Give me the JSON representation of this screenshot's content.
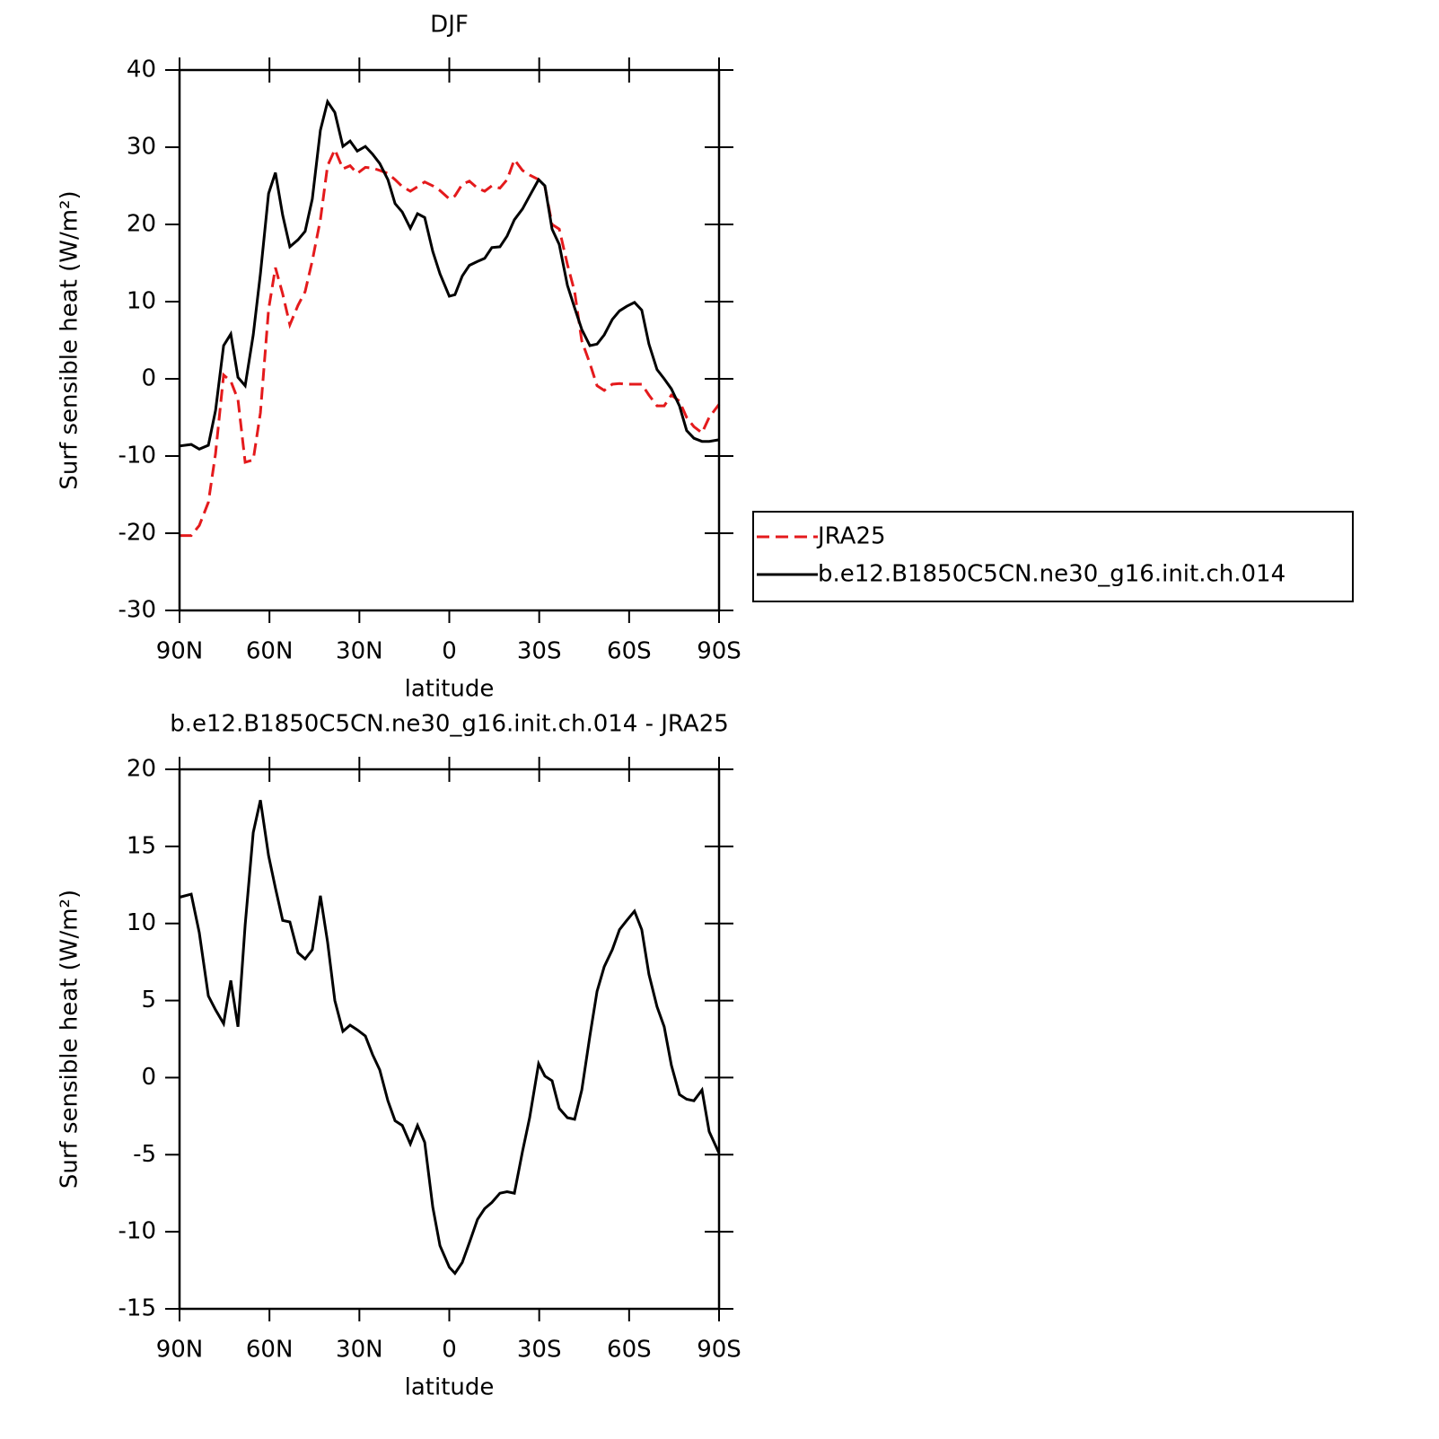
{
  "chart_data": [
    {
      "type": "line",
      "title": "DJF",
      "xlabel": "latitude",
      "ylabel": "Surf sensible heat (W/m²)",
      "x": [
        90,
        86.1,
        83.4,
        80.4,
        78,
        75.3,
        72.9,
        70.5,
        68.1,
        65.4,
        63,
        60.3,
        58,
        55.6,
        53.2,
        50.5,
        48.1,
        45.7,
        43,
        40.6,
        38.2,
        35.5,
        33.1,
        30.7,
        28,
        25.6,
        23.2,
        20.5,
        18.1,
        15.7,
        13,
        10.6,
        8.2,
        5.5,
        3.1,
        0,
        -1.9,
        -4.3,
        -6.7,
        -9.4,
        -11.8,
        -14.2,
        -16.9,
        -19.3,
        -21.7,
        -24.4,
        -26.8,
        -29.8,
        -31.9,
        -34.3,
        -36.7,
        -39.4,
        -41.8,
        -44.2,
        -46.9,
        -49.3,
        -51.7,
        -54.4,
        -56.8,
        -59.2,
        -61.8,
        -64.2,
        -66.6,
        -69.3,
        -71.7,
        -74.1,
        -76.8,
        -79.2,
        -81.6,
        -84.3,
        -86.7,
        -90
      ],
      "series": [
        {
          "name": "JRA25",
          "color": "#e41a1c",
          "linestyle": "dashed",
          "values": [
            -20.3,
            -20.3,
            -19,
            -16,
            -9.7,
            0.5,
            -0.3,
            -2.7,
            -10.8,
            -10.5,
            -4.4,
            9,
            14.4,
            11,
            7,
            9.5,
            11.3,
            15.3,
            20.6,
            27.6,
            29.7,
            27.2,
            27.6,
            26.6,
            27.4,
            27.3,
            27,
            26.6,
            25.8,
            24.9,
            24.3,
            24.9,
            25.5,
            25,
            24.4,
            23.3,
            23.7,
            25.2,
            25.6,
            24.7,
            24.3,
            25,
            24.7,
            25.8,
            28.4,
            27,
            26.4,
            25.8,
            24.9,
            20,
            19.4,
            14.8,
            11.3,
            4.9,
            2,
            -0.9,
            -1.5,
            -0.7,
            -0.6,
            -0.7,
            -0.7,
            -0.7,
            -2.1,
            -3.5,
            -3.5,
            -2.1,
            -2.9,
            -5,
            -6.2,
            -7,
            -5,
            -3.3
          ]
        },
        {
          "name": "b.e12.B1850C5CN.ne30_g16.init.ch.014",
          "color": "#000000",
          "linestyle": "solid",
          "values": [
            -8.7,
            -8.5,
            -9.1,
            -8.6,
            -4.1,
            4.3,
            5.8,
            0.2,
            -0.9,
            5.7,
            13.6,
            24,
            26.7,
            21.2,
            17.1,
            18,
            19.1,
            23.3,
            32.2,
            35.9,
            34.5,
            30.1,
            30.8,
            29.5,
            30.1,
            29.1,
            27.9,
            25.8,
            22.7,
            21.6,
            19.5,
            21.4,
            20.9,
            16.5,
            13.6,
            10.7,
            10.9,
            13.3,
            14.7,
            15.2,
            15.6,
            17,
            17.1,
            18.5,
            20.6,
            22,
            23.7,
            25.8,
            25,
            19.4,
            17.4,
            12.1,
            9.2,
            6.4,
            4.3,
            4.5,
            5.7,
            7.7,
            8.8,
            9.4,
            9.9,
            8.9,
            4.5,
            1.2,
            0,
            -1.3,
            -3.5,
            -6.7,
            -7.7,
            -8.1,
            -8.1,
            -7.9
          ]
        }
      ],
      "xlim": [
        90,
        -90
      ],
      "ylim": [
        -30,
        40
      ],
      "xticks": [
        {
          "value": 90,
          "label": "90N"
        },
        {
          "value": 60,
          "label": "60N"
        },
        {
          "value": 30,
          "label": "30N"
        },
        0,
        {
          "value": -30,
          "label": "30S"
        },
        {
          "value": -60,
          "label": "60S"
        },
        {
          "value": -90,
          "label": "90S"
        }
      ],
      "yticks": [
        -30,
        -20,
        -10,
        0,
        10,
        20,
        30,
        40
      ],
      "legend": "right"
    },
    {
      "type": "line",
      "title": "b.e12.B1850C5CN.ne30_g16.init.ch.014 - JRA25",
      "xlabel": "latitude",
      "ylabel": "Surf sensible heat (W/m²)",
      "x": [
        90,
        86.1,
        83.4,
        80.4,
        78,
        75.3,
        72.9,
        70.5,
        68.1,
        65.4,
        63,
        60.3,
        58,
        55.6,
        53.2,
        50.5,
        48.1,
        45.7,
        43,
        40.6,
        38.2,
        35.5,
        33.1,
        30.7,
        28,
        25.6,
        23.2,
        20.5,
        18.1,
        15.7,
        13,
        10.6,
        8.2,
        5.5,
        3.1,
        0,
        -1.9,
        -4.3,
        -6.7,
        -9.4,
        -11.8,
        -14.2,
        -16.9,
        -19.3,
        -21.7,
        -24.4,
        -26.8,
        -29.8,
        -31.9,
        -34.3,
        -36.7,
        -39.4,
        -41.8,
        -44.2,
        -46.9,
        -49.3,
        -51.7,
        -54.4,
        -56.8,
        -59.2,
        -61.8,
        -64.2,
        -66.6,
        -69.3,
        -71.7,
        -74.1,
        -76.8,
        -79.2,
        -81.6,
        -84.3,
        -86.7,
        -90
      ],
      "series": [
        {
          "color": "#000000",
          "linestyle": "solid",
          "values": [
            11.7,
            11.9,
            9.4,
            5.3,
            4.4,
            3.5,
            6.3,
            3.3,
            9.9,
            15.9,
            18,
            14.4,
            12.3,
            10.2,
            10.1,
            8.1,
            7.7,
            8.3,
            11.8,
            8.8,
            5,
            3,
            3.4,
            3.1,
            2.7,
            1.5,
            0.5,
            -1.5,
            -2.8,
            -3.1,
            -4.3,
            -3.1,
            -4.2,
            -8.4,
            -10.9,
            -12.3,
            -12.7,
            -12,
            -10.7,
            -9.2,
            -8.5,
            -8.1,
            -7.5,
            -7.4,
            -7.5,
            -4.8,
            -2.6,
            0.9,
            0.1,
            -0.2,
            -2,
            -2.6,
            -2.7,
            -0.8,
            2.7,
            5.6,
            7.2,
            8.3,
            9.6,
            10.2,
            10.8,
            9.6,
            6.7,
            4.6,
            3.3,
            0.8,
            -1.1,
            -1.4,
            -1.5,
            -0.8,
            -3.5,
            -4.9
          ]
        }
      ],
      "xlim": [
        90,
        -90
      ],
      "ylim": [
        -15,
        20
      ],
      "xticks": [
        {
          "value": 90,
          "label": "90N"
        },
        {
          "value": 60,
          "label": "60N"
        },
        {
          "value": 30,
          "label": "30N"
        },
        0,
        {
          "value": -30,
          "label": "30S"
        },
        {
          "value": -60,
          "label": "60S"
        },
        {
          "value": -90,
          "label": "90S"
        }
      ],
      "yticks": [
        -15,
        -10,
        -5,
        0,
        5,
        10,
        15,
        20
      ]
    }
  ]
}
